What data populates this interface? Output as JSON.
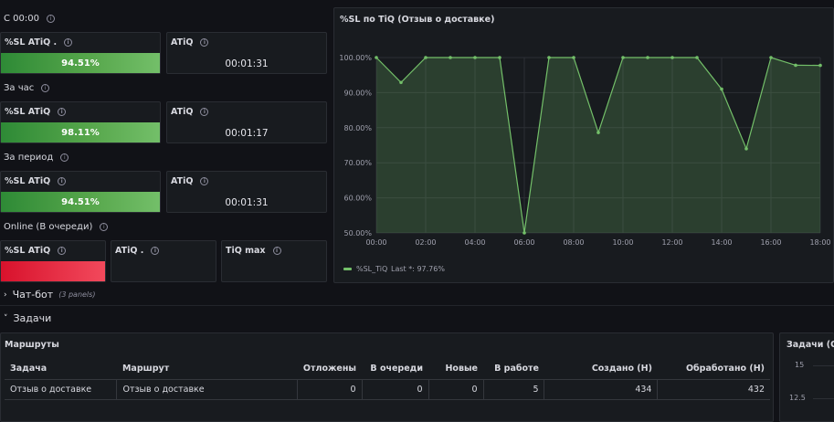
{
  "sections": {
    "since_midnight": "С 00:00",
    "hour": "За час",
    "period": "За период",
    "online": "Online (В очереди)"
  },
  "stats": [
    {
      "sl_title": "%SL ATiQ .",
      "sl_value": "94.51%",
      "atiq_title": "ATiQ",
      "atiq_value": "00:01:31"
    },
    {
      "sl_title": "%SL ATiQ",
      "sl_value": "98.11%",
      "atiq_title": "ATiQ",
      "atiq_value": "00:01:17"
    },
    {
      "sl_title": "%SL ATiQ",
      "sl_value": "94.51%",
      "atiq_title": "ATiQ",
      "atiq_value": "00:01:31"
    }
  ],
  "online": {
    "sl_title": "%SL ATiQ",
    "atiq_title": "ATiQ .",
    "tiqmax_title": "TiQ max"
  },
  "chart_panel": {
    "title": "%SL по TiQ (Отзыв о доставке)",
    "legend_label": "%SL_TiQ",
    "legend_last": "Last *: 97.76%"
  },
  "chart_data": {
    "type": "line",
    "title": "%SL по TiQ (Отзыв о доставке)",
    "x": [
      "00:00",
      "01:00",
      "02:00",
      "03:00",
      "04:00",
      "05:00",
      "06:00",
      "07:00",
      "08:00",
      "09:00",
      "10:00",
      "11:00",
      "12:00",
      "13:00",
      "14:00",
      "15:00",
      "16:00",
      "17:00",
      "18:00"
    ],
    "x_ticks": [
      "00:00",
      "02:00",
      "04:00",
      "06:00",
      "08:00",
      "10:00",
      "12:00",
      "14:00",
      "16:00",
      "18:00"
    ],
    "y_ticks": [
      "100.00%",
      "90.00%",
      "80.00%",
      "70.00%",
      "60.00%",
      "50.00%"
    ],
    "ylim": [
      50,
      100
    ],
    "series": [
      {
        "name": "%SL_TiQ",
        "color": "#73bf69",
        "values": [
          100,
          92.9,
          100,
          100,
          100,
          100,
          50,
          100,
          100,
          78.6,
          100,
          100,
          100,
          100,
          91,
          74,
          100,
          97.8,
          97.76
        ]
      }
    ],
    "grid": true,
    "legend": "bottom-left"
  },
  "rows": {
    "chatbot_label": "Чат-бот",
    "chatbot_panels": "(3 panels)",
    "tasks_label": "Задачи"
  },
  "routes_panel": {
    "title": "Маршруты",
    "headers": [
      "Задача",
      "Маршрут",
      "Отложены",
      "В очереди",
      "Новые",
      "В работе",
      "Создано (Н)",
      "Обработано (Н)"
    ],
    "row": [
      "Отзыв о доставке",
      "Отзыв о доставке",
      "0",
      "0",
      "0",
      "5",
      "434",
      "432"
    ]
  },
  "side_panel": {
    "title": "Задачи (От",
    "y_ticks": [
      "15",
      "12.5"
    ]
  }
}
